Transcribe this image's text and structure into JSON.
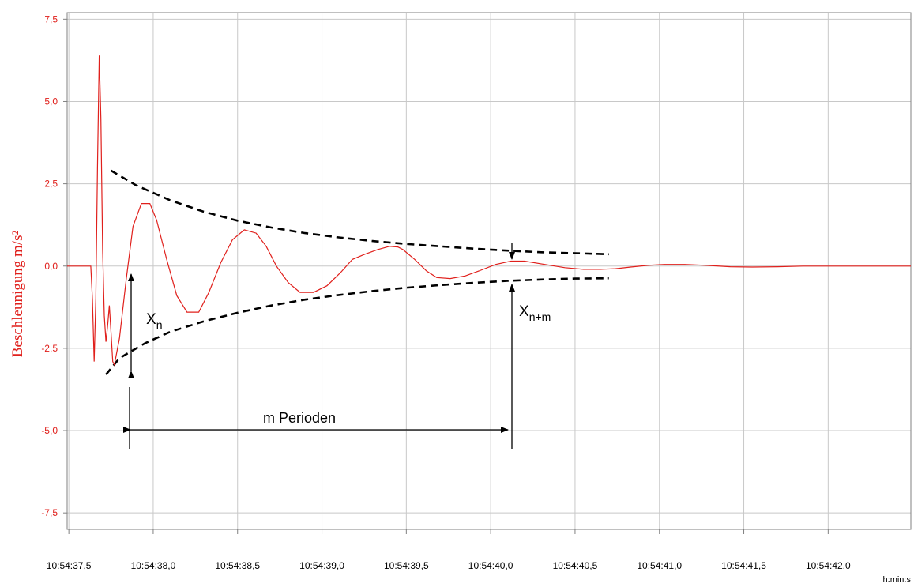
{
  "chart_data": {
    "type": "line",
    "ylabel": "Beschleunigung m/s²",
    "xunit": "h:min:s",
    "ylim": [
      -8,
      7.7
    ],
    "xlim": [
      "10:54:37,49",
      "10:54:42,49"
    ],
    "yticks": [
      "7,5",
      "5,0",
      "2,5",
      "0,0",
      "-2,5",
      "-5,0",
      "-7,5"
    ],
    "ytick_values": [
      7.5,
      5.0,
      2.5,
      0.0,
      -2.5,
      -5.0,
      -7.5
    ],
    "xticks": [
      "10:54:37,5",
      "10:54:38,0",
      "10:54:38,5",
      "10:54:39,0",
      "10:54:39,5",
      "10:54:40,0",
      "10:54:40,5",
      "10:54:41,0",
      "10:54:41,5",
      "10:54:42,0"
    ],
    "xtick_values": [
      37.5,
      38.0,
      38.5,
      39.0,
      39.5,
      40.0,
      40.5,
      41.0,
      41.5,
      42.0
    ],
    "grid": true,
    "colors": {
      "signal": "#e0201c",
      "envelope": "#000000",
      "grid": "#c8c8c8"
    },
    "series": [
      {
        "x": [
          37.49,
          37.63,
          37.64,
          37.65,
          37.66,
          37.67,
          37.68,
          37.69,
          37.7,
          37.71,
          37.72,
          37.73,
          37.74,
          37.75,
          37.76,
          37.77,
          37.8,
          37.84,
          37.88,
          37.93,
          37.98,
          38.02,
          38.08,
          38.14,
          38.2,
          38.27,
          38.33,
          38.4,
          38.47,
          38.54,
          38.61,
          38.67,
          38.73,
          38.8,
          38.87,
          38.95,
          39.03,
          39.11,
          39.18,
          39.25,
          39.33,
          39.4,
          39.45,
          39.48,
          39.55,
          39.62,
          39.68,
          39.76,
          39.85,
          39.93,
          40.03,
          40.12,
          40.2,
          40.32,
          40.44,
          40.55,
          40.65,
          40.74,
          40.83,
          40.93,
          41.03,
          41.15,
          41.28,
          41.42,
          41.55,
          41.7,
          41.85,
          42.0,
          42.15,
          42.3,
          42.49
        ],
        "y": [
          0.0,
          0.0,
          -1.0,
          -2.9,
          -1.0,
          3.0,
          6.4,
          4.5,
          0.5,
          -1.5,
          -2.3,
          -1.8,
          -1.2,
          -2.0,
          -2.9,
          -3.0,
          -2.2,
          -0.4,
          1.2,
          1.9,
          1.9,
          1.4,
          0.2,
          -0.9,
          -1.4,
          -1.4,
          -0.8,
          0.1,
          0.8,
          1.1,
          1.0,
          0.6,
          0.0,
          -0.5,
          -0.8,
          -0.8,
          -0.6,
          -0.2,
          0.2,
          0.35,
          0.5,
          0.6,
          0.58,
          0.5,
          0.2,
          -0.15,
          -0.35,
          -0.38,
          -0.3,
          -0.15,
          0.05,
          0.15,
          0.15,
          0.05,
          -0.05,
          -0.1,
          -0.1,
          -0.08,
          -0.03,
          0.02,
          0.05,
          0.05,
          0.02,
          -0.02,
          -0.03,
          -0.02,
          0.0,
          0.0,
          0.0,
          0.0,
          0.0
        ]
      }
    ],
    "envelope": {
      "upper": {
        "x": [
          37.75,
          37.9,
          38.1,
          38.3,
          38.5,
          38.7,
          38.9,
          39.1,
          39.3,
          39.5,
          39.7,
          39.9,
          40.1,
          40.3,
          40.5,
          40.7
        ],
        "y": [
          2.9,
          2.45,
          2.0,
          1.65,
          1.38,
          1.17,
          1.0,
          0.87,
          0.76,
          0.67,
          0.6,
          0.53,
          0.47,
          0.42,
          0.39,
          0.36
        ]
      },
      "lower": {
        "x": [
          37.72,
          37.8,
          37.95,
          38.1,
          38.3,
          38.5,
          38.7,
          38.9,
          39.1,
          39.3,
          39.5,
          39.7,
          39.9,
          40.1,
          40.3,
          40.5,
          40.7
        ],
        "y": [
          -3.3,
          -2.8,
          -2.35,
          -2.0,
          -1.68,
          -1.42,
          -1.2,
          -1.02,
          -0.88,
          -0.76,
          -0.66,
          -0.58,
          -0.51,
          -0.45,
          -0.41,
          -0.38,
          -0.37
        ]
      }
    },
    "annotations": {
      "xn": {
        "main": "X",
        "sub": "n"
      },
      "xnm": {
        "main": "X",
        "sub": "n+m"
      },
      "span_label": "m Perioden"
    }
  }
}
